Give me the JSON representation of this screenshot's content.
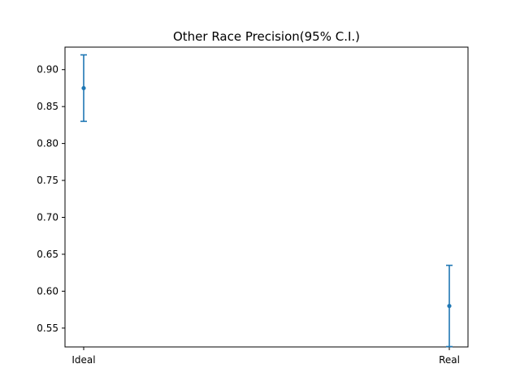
{
  "chart_data": {
    "type": "errorbar",
    "title": "Other Race Precision(95% C.I.)",
    "xlabel": "",
    "ylabel": "",
    "categories": [
      "Ideal",
      "Real"
    ],
    "series": [
      {
        "values": [
          0.875,
          0.58
        ],
        "lower": [
          0.83,
          0.525
        ],
        "upper": [
          0.92,
          0.635
        ]
      }
    ],
    "ylim": [
      0.5245,
      0.9305
    ],
    "yticks": [
      0.55,
      0.6,
      0.65,
      0.7,
      0.75,
      0.8,
      0.85,
      0.9
    ],
    "ytick_labels": [
      "0.55",
      "0.60",
      "0.65",
      "0.70",
      "0.75",
      "0.80",
      "0.85",
      "0.90"
    ],
    "grid": false,
    "legend": "none",
    "color": "#1f77b4"
  }
}
